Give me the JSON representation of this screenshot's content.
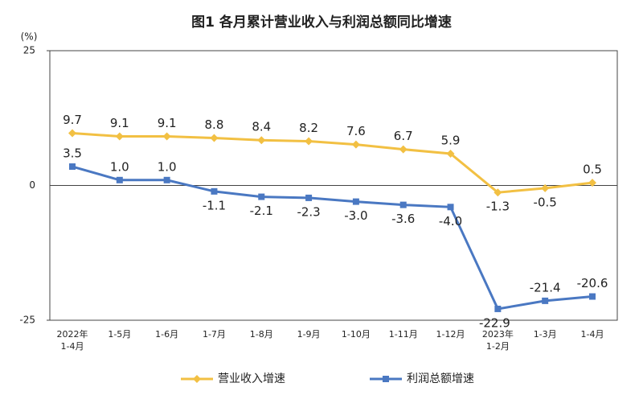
{
  "chart_data": {
    "type": "line",
    "title": "图1  各月累计营业收入与利润总额同比增速",
    "y_unit": "(%)",
    "categories": [
      "2022年\n1-4月",
      "1-5月",
      "1-6月",
      "1-7月",
      "1-8月",
      "1-9月",
      "1-10月",
      "1-11月",
      "1-12月",
      "2023年\n1-2月",
      "1-3月",
      "1-4月"
    ],
    "series": [
      {
        "name": "营业收入增速",
        "color": "#f2c043",
        "marker": "diamond",
        "values": [
          9.7,
          9.1,
          9.1,
          8.8,
          8.4,
          8.2,
          7.6,
          6.7,
          5.9,
          -1.3,
          -0.5,
          0.5
        ],
        "value_labels": [
          "9.7",
          "9.1",
          "9.1",
          "8.8",
          "8.4",
          "8.2",
          "7.6",
          "6.7",
          "5.9",
          "-1.3",
          "-0.5",
          "0.5"
        ]
      },
      {
        "name": "利润总额增速",
        "color": "#4a78c2",
        "marker": "square",
        "values": [
          3.5,
          1.0,
          1.0,
          -1.1,
          -2.1,
          -2.3,
          -3.0,
          -3.6,
          -4.0,
          -22.9,
          -21.4,
          -20.6
        ],
        "value_labels": [
          "3.5",
          "1.0",
          "1.0",
          "-1.1",
          "-2.1",
          "-2.3",
          "-3.0",
          "-3.6",
          "-4.0",
          "-22.9",
          "-21.4",
          "-20.6"
        ]
      }
    ],
    "ylim": [
      -25,
      25
    ],
    "yticks": [
      25,
      0,
      -25
    ],
    "grid": false
  }
}
